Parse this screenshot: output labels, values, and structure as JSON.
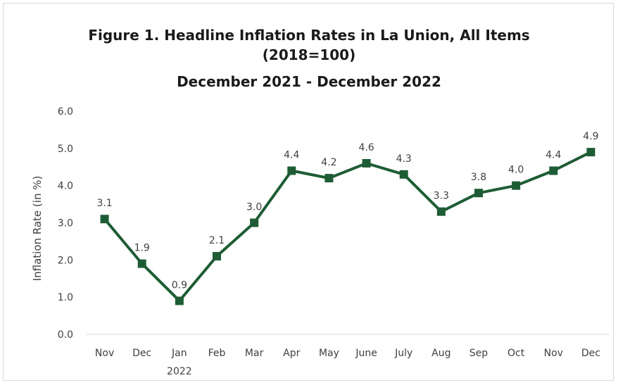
{
  "chart_data": {
    "type": "line",
    "title": "Figure 1. Headline Inflation Rates in La Union, All Items",
    "subtitle": "(2018=100)",
    "subtitle2": "December 2021 - December 2022",
    "ylabel": "Inflation Rate (in %)",
    "xlabel": "",
    "ylim": [
      0,
      6
    ],
    "yticks": [
      "0.0",
      "1.0",
      "2.0",
      "3.0",
      "4.0",
      "5.0",
      "6.0"
    ],
    "categories": [
      "Nov",
      "Dec",
      "Jan",
      "Feb",
      "Mar",
      "Apr",
      "May",
      "June",
      "July",
      "Aug",
      "Sep",
      "Oct",
      "Nov",
      "Dec"
    ],
    "year_label": "2022",
    "year_label_under": "Jan",
    "values": [
      3.1,
      1.9,
      0.9,
      2.1,
      3.0,
      4.4,
      4.2,
      4.6,
      4.3,
      3.3,
      3.8,
      4.0,
      4.4,
      4.9
    ],
    "data_labels": [
      "3.1",
      "1.9",
      "0.9",
      "2.1",
      "3.0",
      "4.4",
      "4.2",
      "4.6",
      "4.3",
      "3.3",
      "3.8",
      "4.0",
      "4.4",
      "4.9"
    ],
    "series_color": "#1e5c35",
    "grid": false,
    "legend": "none"
  }
}
